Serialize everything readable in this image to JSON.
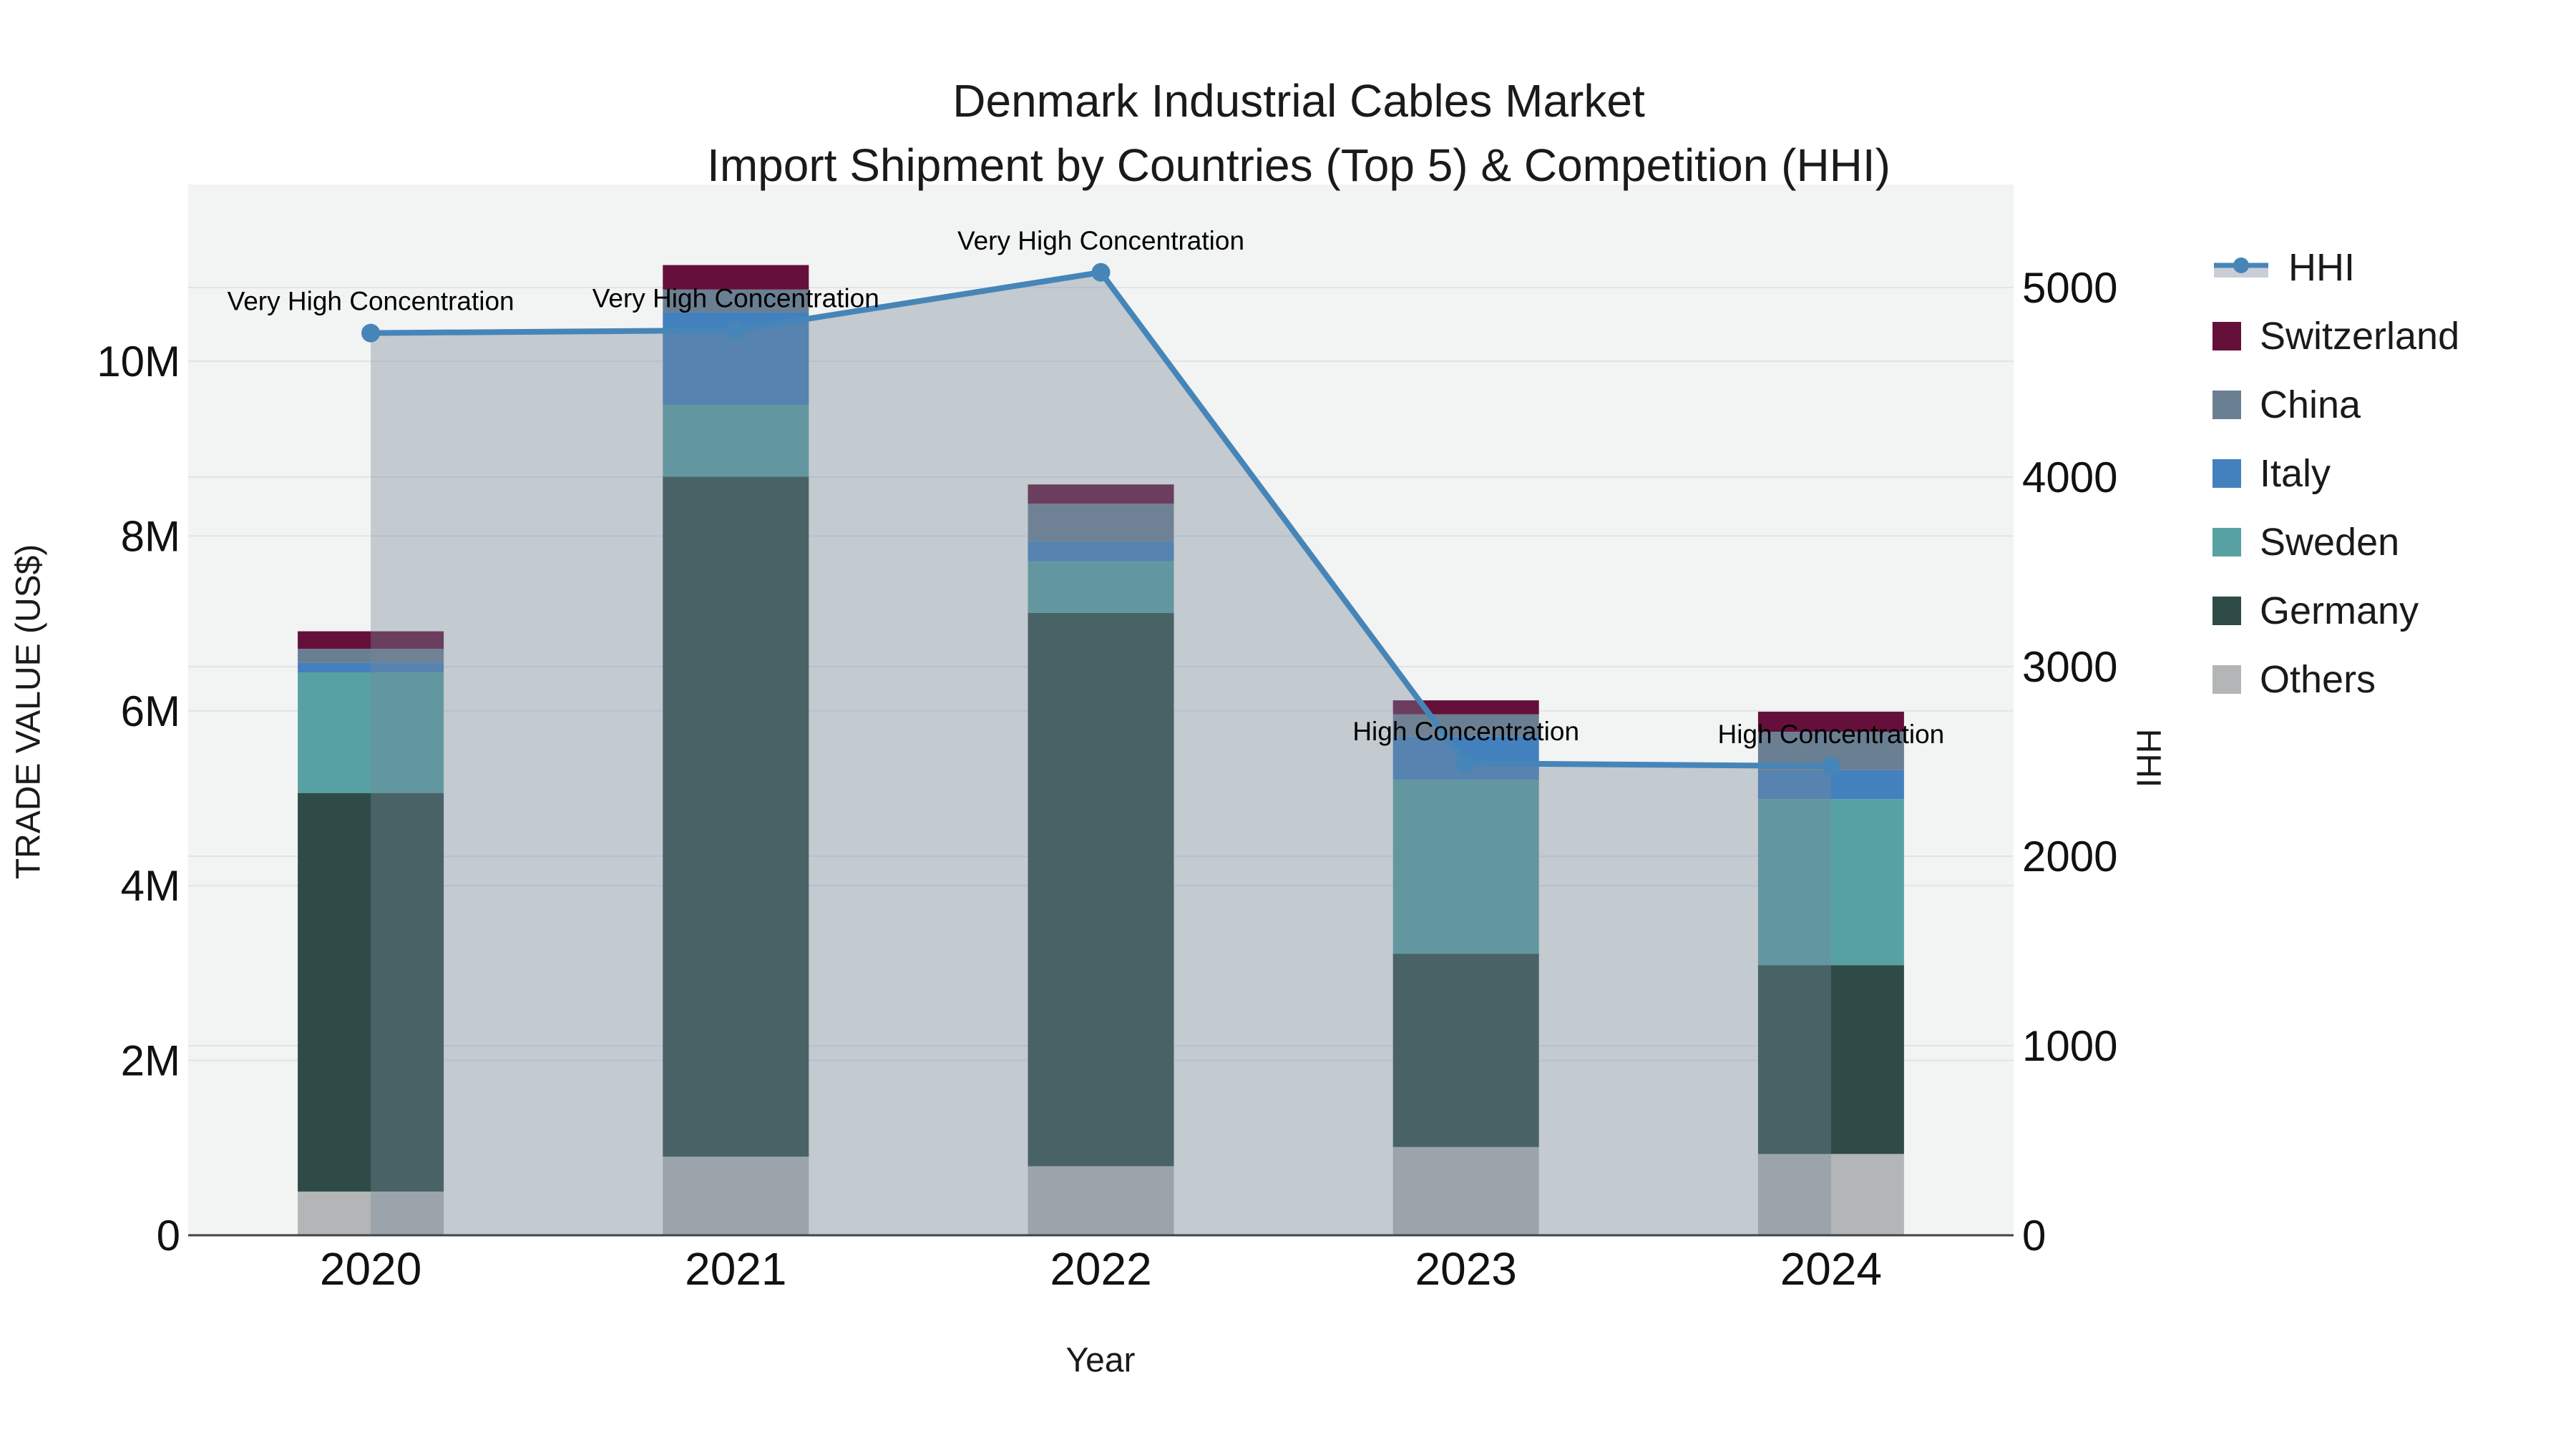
{
  "title": {
    "line1": "Denmark Industrial Cables Market",
    "line2": "Import Shipment by Countries (Top 5) & Competition (HHI)"
  },
  "axes": {
    "left": {
      "title": "TRADE VALUE (US$)",
      "tick_labels": [
        "0",
        "2M",
        "4M",
        "6M",
        "8M",
        "10M"
      ],
      "tick_values_M": [
        0,
        2,
        4,
        6,
        8,
        10
      ]
    },
    "right": {
      "title": "HHI",
      "tick_labels": [
        "0",
        "1000",
        "2000",
        "3000",
        "4000",
        "5000"
      ],
      "tick_values": [
        0,
        1000,
        2000,
        3000,
        4000,
        5000
      ]
    },
    "x": {
      "title": "Year",
      "tick_labels": [
        "2020",
        "2021",
        "2022",
        "2023",
        "2024"
      ]
    }
  },
  "legend_items": [
    {
      "label": "HHI",
      "kind": "line",
      "color": "#4685B8",
      "band": "#C9CDD6"
    },
    {
      "label": "Switzerland",
      "kind": "square",
      "color": "#65103A"
    },
    {
      "label": "China",
      "kind": "square",
      "color": "#6B7F93"
    },
    {
      "label": "Italy",
      "kind": "square",
      "color": "#4380BE"
    },
    {
      "label": "Sweden",
      "kind": "square",
      "color": "#57A1A3"
    },
    {
      "label": "Germany",
      "kind": "square",
      "color": "#2E4B47"
    },
    {
      "label": "Others",
      "kind": "square",
      "color": "#B3B5B6"
    }
  ],
  "colors": {
    "plot_bg": "#F2F3F3",
    "gridline": "#E0E3E8",
    "axis_line": "#3F444A",
    "hhi_line": "#4685B8",
    "hhi_fill": "rgba(119,136,153,0.38)",
    "annotation_text": "#000000"
  },
  "chart_data": {
    "type": "combo: stacked bar (trade value, left axis) + filled line (HHI, right axis)",
    "categories": [
      "2020",
      "2021",
      "2022",
      "2023",
      "2024"
    ],
    "xlabel": "Year",
    "ylabel_left": "TRADE VALUE (US$)",
    "ylabel_right": "HHI",
    "ylim_left_M": [
      0,
      12
    ],
    "ylim_right": [
      0,
      5540
    ],
    "grid": true,
    "legend_position": "right",
    "bar_units": "million US$",
    "series": [
      {
        "name": "Others",
        "color": "#B3B5B6",
        "values_M": [
          0.5,
          0.9,
          0.79,
          1.01,
          0.93
        ]
      },
      {
        "name": "Germany",
        "color": "#2E4B47",
        "values_M": [
          4.56,
          7.78,
          6.33,
          2.21,
          2.16
        ]
      },
      {
        "name": "Sweden",
        "color": "#57A1A3",
        "values_M": [
          1.38,
          0.82,
          0.59,
          1.99,
          1.9
        ]
      },
      {
        "name": "Italy",
        "color": "#4380BE",
        "values_M": [
          0.11,
          1.06,
          0.23,
          0.5,
          0.33
        ]
      },
      {
        "name": "China",
        "color": "#6B7F93",
        "values_M": [
          0.16,
          0.26,
          0.43,
          0.25,
          0.44
        ]
      },
      {
        "name": "Switzerland",
        "color": "#65103A",
        "values_M": [
          0.2,
          0.28,
          0.22,
          0.16,
          0.23
        ]
      }
    ],
    "bar_totals_M": [
      6.91,
      11.1,
      8.59,
      6.12,
      5.99
    ],
    "line_series": {
      "name": "HHI",
      "values": [
        4760,
        4775,
        5080,
        2490,
        2475
      ]
    },
    "annotations": [
      "Very High Concentration",
      "Very High Concentration",
      "Very High Concentration",
      "High Concentration",
      "High Concentration"
    ]
  }
}
